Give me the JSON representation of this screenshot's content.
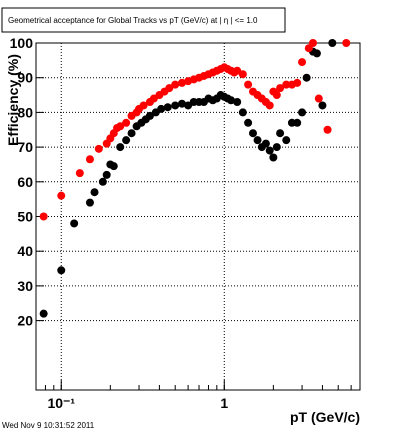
{
  "chart_data": {
    "type": "scatter",
    "title": "Geometrical acceptance for Global Tracks vs pT (GeV/c) at | η | <= 1.0",
    "x_label": "pT (GeV/c)",
    "y_label": "Efficiency (%)",
    "footer": "Wed Nov  9 10:31:52 2011",
    "log_x": true,
    "grid": true,
    "xlim": [
      0.07,
      6.8
    ],
    "ylim": [
      0,
      100
    ],
    "xticks": [
      {
        "value": 0.1,
        "label": "10⁻¹"
      },
      1
    ],
    "yticks": [
      20,
      30,
      40,
      50,
      60,
      70,
      80,
      90,
      100
    ],
    "series": [
      {
        "name": "black",
        "color": "#000000",
        "x": [
          0.078,
          0.1,
          0.12,
          0.15,
          0.16,
          0.18,
          0.19,
          0.2,
          0.21,
          0.23,
          0.25,
          0.27,
          0.29,
          0.31,
          0.33,
          0.35,
          0.38,
          0.41,
          0.45,
          0.5,
          0.55,
          0.6,
          0.65,
          0.7,
          0.75,
          0.8,
          0.85,
          0.9,
          0.95,
          1.0,
          1.05,
          1.1,
          1.2,
          1.3,
          1.4,
          1.5,
          1.6,
          1.7,
          1.8,
          1.9,
          2.0,
          2.1,
          2.2,
          2.4,
          2.6,
          2.8,
          3.0,
          3.2,
          3.5,
          3.7,
          4.0,
          4.6
        ],
        "values": [
          22,
          34.5,
          48,
          54,
          57,
          60,
          62,
          65,
          64.5,
          70,
          72,
          74,
          76,
          77,
          78,
          79,
          80,
          81,
          81.5,
          82,
          82.5,
          82,
          83,
          83,
          83,
          84,
          83.5,
          84,
          85,
          84.5,
          84,
          83.5,
          83,
          80,
          77,
          74,
          72,
          70,
          71,
          69,
          67,
          70,
          74,
          72,
          77,
          77,
          80,
          90,
          97.5,
          97,
          82,
          100
        ]
      },
      {
        "name": "red",
        "color": "#ff0000",
        "x": [
          0.078,
          0.1,
          0.13,
          0.15,
          0.17,
          0.19,
          0.2,
          0.21,
          0.22,
          0.23,
          0.25,
          0.27,
          0.29,
          0.3,
          0.32,
          0.35,
          0.37,
          0.4,
          0.43,
          0.46,
          0.5,
          0.55,
          0.6,
          0.65,
          0.7,
          0.75,
          0.8,
          0.85,
          0.9,
          0.95,
          1.0,
          1.05,
          1.1,
          1.15,
          1.2,
          1.3,
          1.4,
          1.5,
          1.6,
          1.7,
          1.8,
          1.9,
          2.0,
          2.1,
          2.2,
          2.4,
          2.6,
          2.8,
          3.0,
          3.3,
          3.5,
          3.8,
          4.3,
          5.6
        ],
        "values": [
          50,
          56,
          62.5,
          66.5,
          69.5,
          71,
          72.5,
          74,
          75.5,
          76,
          77,
          79,
          80,
          81,
          82,
          83,
          84,
          85,
          86,
          87,
          88,
          88.5,
          89,
          89.5,
          90,
          90.5,
          91,
          91.5,
          92,
          92.5,
          93,
          92.5,
          92,
          91.5,
          92,
          91,
          88,
          86,
          85,
          84,
          83,
          82,
          86,
          85,
          87,
          88,
          88,
          88.5,
          94.5,
          98.5,
          100,
          84,
          75,
          100
        ]
      }
    ]
  }
}
